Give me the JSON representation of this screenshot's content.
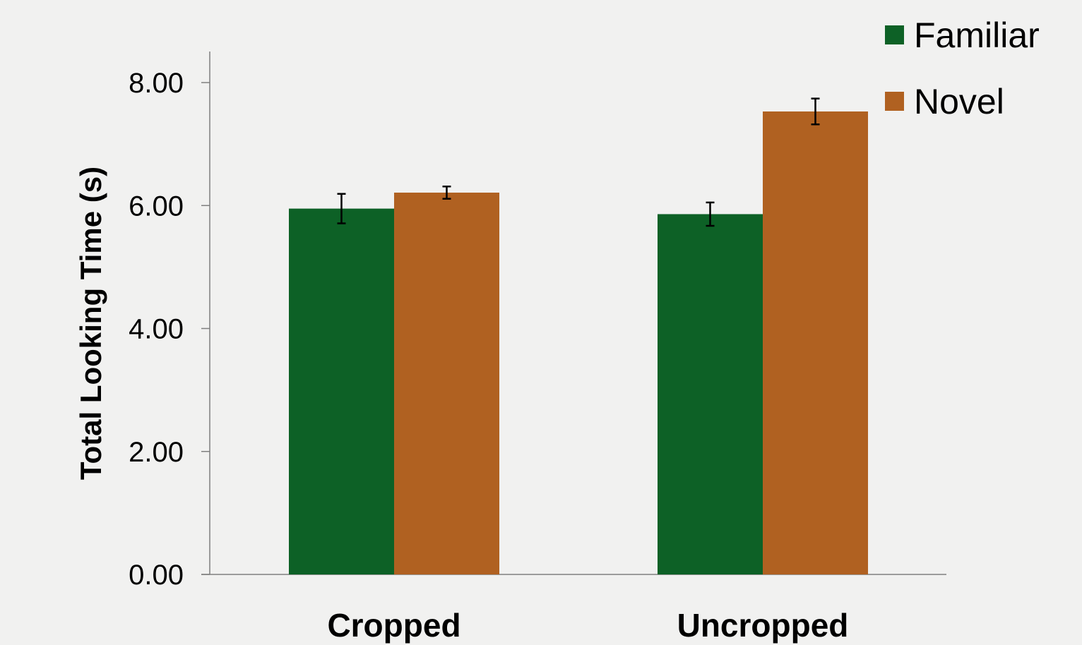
{
  "chart_data": {
    "type": "bar",
    "categories": [
      "Cropped",
      "Uncropped"
    ],
    "series": [
      {
        "name": "Familiar",
        "values": [
          5.95,
          5.86
        ],
        "errors": [
          0.24,
          0.19
        ],
        "color": "#0d6126"
      },
      {
        "name": "Novel",
        "values": [
          6.21,
          7.53
        ],
        "errors": [
          0.1,
          0.21
        ],
        "color": "#b06121"
      }
    ],
    "title": "",
    "xlabel": "",
    "ylabel": "Total Looking Time (s)",
    "ylim": [
      0,
      8
    ],
    "yticks": [
      "0.00",
      "2.00",
      "4.00",
      "6.00",
      "8.00"
    ],
    "grid": false,
    "legend_position": "top-right"
  }
}
